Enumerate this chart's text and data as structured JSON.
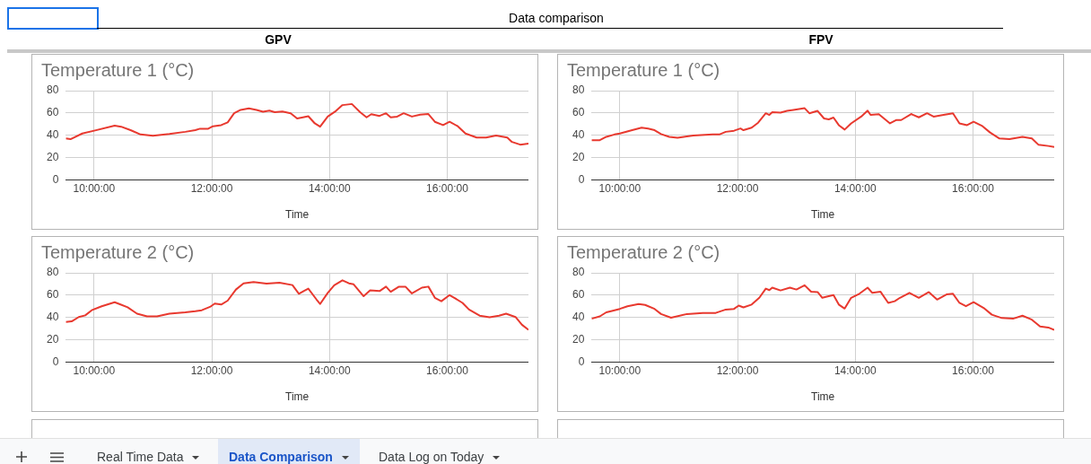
{
  "chart_data": [
    {
      "type": "line",
      "title": "Temperature 1 (°C)",
      "xlabel": "Time",
      "color": "#e8392f",
      "marker": "none",
      "grid": true,
      "legend": false,
      "annotations": [
        "Data comparison",
        "GPV"
      ],
      "xlim": [
        9.52,
        17.38
      ],
      "xticks": [
        {
          "value": 10,
          "label": "10:00:00"
        },
        {
          "value": 12,
          "label": "12:00:00"
        },
        {
          "value": 14,
          "label": "14:00:00"
        },
        {
          "value": 16,
          "label": "16:00:00"
        }
      ],
      "ylim": [
        0,
        80
      ],
      "yticks": [
        0,
        20,
        40,
        60,
        80
      ],
      "x": [
        9.52,
        9.6,
        9.8,
        10,
        10.35,
        10.46,
        10.62,
        10.79,
        11,
        11.28,
        11.55,
        11.72,
        11.8,
        11.94,
        12.02,
        12.16,
        12.27,
        12.38,
        12.49,
        12.63,
        12.76,
        12.87,
        12.98,
        13.07,
        13.2,
        13.34,
        13.45,
        13.53,
        13.64,
        13.75,
        13.84,
        13.97,
        14.11,
        14.22,
        14.38,
        14.52,
        14.63,
        14.71,
        14.85,
        14.96,
        15.04,
        15.15,
        15.26,
        15.4,
        15.54,
        15.68,
        15.79,
        15.93,
        16.04,
        16.18,
        16.31,
        16.5,
        16.66,
        16.83,
        17.02,
        17.1,
        17.24,
        17.38
      ],
      "values": [
        37,
        36.4,
        41.5,
        44,
        48.5,
        47.6,
        44.5,
        40.6,
        39.4,
        41,
        43,
        44.5,
        45.8,
        45.8,
        48,
        49,
        51.5,
        59.7,
        62.7,
        64,
        62.7,
        61,
        62,
        60.6,
        61.2,
        59.7,
        55,
        55.8,
        57,
        50.6,
        47.6,
        56.7,
        61.8,
        67,
        68,
        60.6,
        56,
        58.8,
        57.3,
        59.7,
        56,
        56.7,
        59.7,
        56.7,
        58.5,
        59,
        52,
        49,
        52,
        48,
        41.5,
        37.9,
        37.9,
        39.7,
        37.9,
        33.9,
        31.5,
        32.4
      ]
    },
    {
      "type": "line",
      "title": "Temperature 1 (°C)",
      "xlabel": "Time",
      "color": "#e8392f",
      "marker": "none",
      "grid": true,
      "legend": false,
      "annotations": [
        "FPV"
      ],
      "xlim": [
        9.52,
        17.38
      ],
      "xticks": [
        {
          "value": 10,
          "label": "10:00:00"
        },
        {
          "value": 12,
          "label": "12:00:00"
        },
        {
          "value": 14,
          "label": "14:00:00"
        },
        {
          "value": 16,
          "label": "16:00:00"
        }
      ],
      "ylim": [
        0,
        80
      ],
      "yticks": [
        0,
        20,
        40,
        60,
        80
      ],
      "x": [
        9.52,
        9.66,
        9.77,
        9.91,
        10,
        10.21,
        10.37,
        10.48,
        10.59,
        10.7,
        10.84,
        10.98,
        11.25,
        11.58,
        11.69,
        11.8,
        11.94,
        12.05,
        12.1,
        12.24,
        12.35,
        12.48,
        12.54,
        12.59,
        12.73,
        12.84,
        12.95,
        13.14,
        13.22,
        13.36,
        13.47,
        13.55,
        13.63,
        13.72,
        13.82,
        13.93,
        14.1,
        14.21,
        14.26,
        14.4,
        14.59,
        14.7,
        14.78,
        14.95,
        15.08,
        15.22,
        15.33,
        15.5,
        15.66,
        15.77,
        15.9,
        16.01,
        16.15,
        16.29,
        16.45,
        16.62,
        16.84,
        17,
        17.11,
        17.28,
        17.38
      ],
      "values": [
        35.5,
        35.5,
        38.5,
        40.6,
        41.5,
        44.5,
        46.7,
        46,
        44.5,
        41,
        38.5,
        37.6,
        39.7,
        40.6,
        40.6,
        43,
        44,
        46,
        44.5,
        46.7,
        51.2,
        59.7,
        58.2,
        60.6,
        60.3,
        61.8,
        62.7,
        64.2,
        59.7,
        61.8,
        55,
        54.2,
        55.8,
        49,
        45,
        50.6,
        56.7,
        62,
        58.2,
        58.8,
        50.6,
        53.6,
        53.6,
        59,
        56,
        59.7,
        56.7,
        58.2,
        59.7,
        50.6,
        49,
        52,
        48.5,
        42.4,
        37,
        36.4,
        38.5,
        37,
        31.5,
        30.3,
        29.4
      ]
    },
    {
      "type": "line",
      "title": "Temperature 2 (°C)",
      "xlabel": "Time",
      "color": "#e8392f",
      "marker": "none",
      "grid": true,
      "legend": false,
      "xlim": [
        9.52,
        17.38
      ],
      "xticks": [
        {
          "value": 10,
          "label": "10:00:00"
        },
        {
          "value": 12,
          "label": "12:00:00"
        },
        {
          "value": 14,
          "label": "14:00:00"
        },
        {
          "value": 16,
          "label": "16:00:00"
        }
      ],
      "ylim": [
        0,
        80
      ],
      "yticks": [
        0,
        20,
        40,
        60,
        80
      ],
      "x": [
        9.52,
        9.62,
        9.74,
        9.85,
        9.96,
        10.13,
        10.35,
        10.43,
        10.57,
        10.73,
        10.9,
        11.07,
        11.28,
        11.55,
        11.72,
        11.83,
        11.97,
        12.05,
        12.16,
        12.27,
        12.41,
        12.54,
        12.71,
        12.93,
        13.15,
        13.37,
        13.48,
        13.56,
        13.64,
        13.78,
        13.84,
        13.97,
        14.08,
        14.22,
        14.33,
        14.41,
        14.58,
        14.69,
        14.85,
        14.96,
        15.04,
        15.18,
        15.29,
        15.4,
        15.57,
        15.68,
        15.79,
        15.9,
        16.04,
        16.12,
        16.26,
        16.37,
        16.55,
        16.72,
        16.88,
        17,
        17.16,
        17.27,
        17.38
      ],
      "values": [
        35.8,
        36.4,
        40.3,
        41.8,
        46.4,
        50,
        53.6,
        52,
        49,
        43.3,
        40.9,
        40.9,
        43.3,
        44.5,
        45.5,
        46.4,
        49.4,
        52.4,
        51.5,
        55,
        65,
        70.6,
        71.8,
        70.3,
        71.2,
        69,
        61.2,
        63.6,
        65.8,
        56,
        52,
        62,
        68.8,
        73.3,
        70.6,
        69.7,
        59,
        64.2,
        63.6,
        67.6,
        63,
        67.6,
        67.6,
        61.5,
        66.7,
        67.6,
        57.6,
        54.5,
        60,
        57.6,
        53,
        47,
        41.5,
        40,
        41.5,
        43.3,
        40.3,
        33.3,
        28.8
      ]
    },
    {
      "type": "line",
      "title": "Temperature 2 (°C)",
      "xlabel": "Time",
      "color": "#e8392f",
      "marker": "none",
      "grid": true,
      "legend": false,
      "annotations": [
        "Real Time Data",
        "Data Comparison",
        "Data Log on Today"
      ],
      "xlim": [
        9.52,
        17.38
      ],
      "xticks": [
        {
          "value": 10,
          "label": "10:00:00"
        },
        {
          "value": 12,
          "label": "12:00:00"
        },
        {
          "value": 14,
          "label": "14:00:00"
        },
        {
          "value": 16,
          "label": "16:00:00"
        }
      ],
      "ylim": [
        0,
        80
      ],
      "yticks": [
        0,
        20,
        40,
        60,
        80
      ],
      "x": [
        9.52,
        9.66,
        9.77,
        9.88,
        10,
        10.13,
        10.32,
        10.43,
        10.59,
        10.7,
        10.87,
        11.14,
        11.41,
        11.63,
        11.8,
        11.94,
        12.02,
        12.1,
        12.24,
        12.37,
        12.48,
        12.54,
        12.59,
        12.73,
        12.89,
        13,
        13.14,
        13.25,
        13.36,
        13.44,
        13.55,
        13.63,
        13.72,
        13.82,
        13.93,
        14.07,
        14.21,
        14.29,
        14.43,
        14.56,
        14.67,
        14.76,
        14.92,
        15.08,
        15.25,
        15.39,
        15.55,
        15.66,
        15.77,
        15.88,
        16.01,
        16.18,
        16.32,
        16.49,
        16.68,
        16.84,
        17,
        17.14,
        17.28,
        17.38
      ],
      "values": [
        38.8,
        40.9,
        44.5,
        46,
        47.6,
        50,
        52,
        51.2,
        47.6,
        43,
        39.7,
        43,
        44,
        44,
        47,
        47.6,
        50.6,
        49,
        51.5,
        57.6,
        65.8,
        64.5,
        66.7,
        64.2,
        66.7,
        65,
        68.8,
        63,
        62.7,
        57.6,
        59,
        60,
        51.5,
        47.9,
        57.6,
        61.2,
        66.7,
        62,
        63,
        53,
        54.5,
        57.6,
        62,
        57.6,
        62.7,
        56,
        60.6,
        61.2,
        53,
        50,
        53.6,
        48.5,
        42.4,
        39.4,
        38.8,
        41.5,
        37.9,
        31.8,
        30.9,
        28.8
      ]
    }
  ]
}
